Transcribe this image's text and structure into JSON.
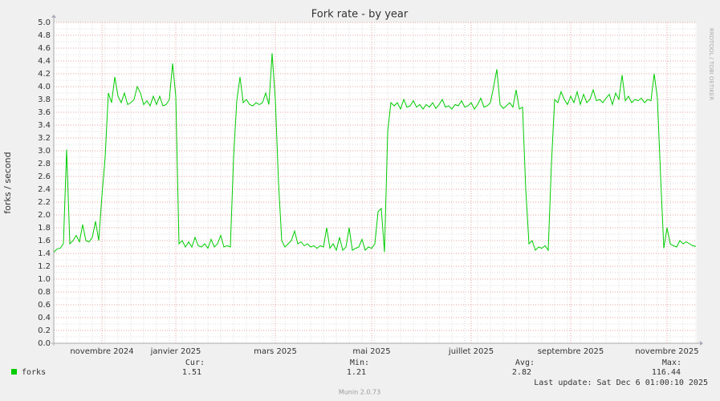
{
  "chart_data": {
    "type": "line",
    "title": "Fork rate - by year",
    "y_label": "forks / second",
    "side_label": "RRDTOOL / TOBI OETIKER",
    "footer": "Munin 2.0.73",
    "last_update": "Last update: Sat Dec  6 01:00:10 2025",
    "categories": [
      null,
      null,
      null,
      null,
      null,
      null,
      null,
      null,
      null,
      null,
      null,
      null,
      null,
      null,
      null,
      "novembre 2024",
      null,
      null,
      null,
      null,
      null,
      null,
      null,
      null,
      null,
      null,
      null,
      null,
      null,
      null,
      null,
      null,
      null,
      null,
      null,
      null,
      null,
      null,
      "janvier 2025",
      null,
      null,
      null,
      null,
      null,
      null,
      null,
      null,
      null,
      null,
      null,
      null,
      null,
      null,
      null,
      null,
      null,
      null,
      null,
      null,
      null,
      null,
      null,
      null,
      null,
      null,
      null,
      null,
      null,
      null,
      "mars 2025",
      null,
      null,
      null,
      null,
      null,
      null,
      null,
      null,
      null,
      null,
      null,
      null,
      null,
      null,
      null,
      null,
      null,
      null,
      null,
      null,
      null,
      null,
      null,
      null,
      null,
      null,
      null,
      null,
      null,
      "mai 2025",
      null,
      null,
      null,
      null,
      null,
      null,
      null,
      null,
      null,
      null,
      null,
      null,
      null,
      null,
      null,
      null,
      null,
      null,
      null,
      null,
      null,
      null,
      null,
      null,
      null,
      null,
      null,
      null,
      null,
      null,
      "juillet 2025",
      null,
      null,
      null,
      null,
      null,
      null,
      null,
      null,
      null,
      null,
      null,
      null,
      null,
      null,
      null,
      null,
      null,
      null,
      null,
      null,
      null,
      null,
      null,
      null,
      null,
      null,
      null,
      null,
      null,
      null,
      "septembre 2025",
      null,
      null,
      null,
      null,
      null,
      null,
      null,
      null,
      null,
      null,
      null,
      null,
      null,
      null,
      null,
      null,
      null,
      null,
      null,
      null,
      null,
      null,
      null,
      null,
      null,
      null,
      null,
      null,
      null,
      "novembre 2025",
      null,
      null,
      null,
      null,
      null,
      null,
      null,
      null,
      null
    ],
    "series": [
      {
        "name": "forks",
        "color": "#00cc00",
        "values": [
          1.42,
          1.47,
          1.48,
          1.55,
          3.02,
          1.55,
          1.6,
          1.68,
          1.58,
          1.85,
          1.6,
          1.58,
          1.65,
          1.9,
          1.6,
          2.3,
          2.9,
          3.9,
          3.75,
          4.15,
          3.85,
          3.75,
          3.9,
          3.72,
          3.75,
          3.8,
          4.0,
          3.9,
          3.72,
          3.78,
          3.7,
          3.85,
          3.72,
          3.85,
          3.7,
          3.72,
          3.8,
          4.36,
          3.85,
          1.55,
          1.6,
          1.5,
          1.58,
          1.5,
          1.65,
          1.52,
          1.5,
          1.55,
          1.48,
          1.62,
          1.5,
          1.55,
          1.68,
          1.5,
          1.52,
          1.5,
          2.9,
          3.78,
          4.15,
          3.75,
          3.8,
          3.72,
          3.7,
          3.75,
          3.72,
          3.75,
          3.9,
          3.72,
          4.52,
          3.8,
          2.5,
          1.6,
          1.5,
          1.55,
          1.6,
          1.75,
          1.55,
          1.58,
          1.52,
          1.55,
          1.5,
          1.52,
          1.48,
          1.52,
          1.5,
          1.8,
          1.48,
          1.55,
          1.45,
          1.65,
          1.45,
          1.5,
          1.8,
          1.45,
          1.48,
          1.5,
          1.62,
          1.45,
          1.5,
          1.48,
          1.55,
          2.05,
          2.1,
          1.42,
          3.3,
          3.75,
          3.7,
          3.75,
          3.65,
          3.8,
          3.68,
          3.7,
          3.78,
          3.68,
          3.72,
          3.65,
          3.72,
          3.68,
          3.75,
          3.66,
          3.72,
          3.8,
          3.68,
          3.7,
          3.65,
          3.72,
          3.7,
          3.78,
          3.68,
          3.7,
          3.75,
          3.65,
          3.72,
          3.82,
          3.68,
          3.7,
          3.75,
          4.0,
          4.27,
          3.72,
          3.66,
          3.7,
          3.75,
          3.68,
          3.95,
          3.65,
          3.68,
          2.4,
          1.55,
          1.6,
          1.45,
          1.5,
          1.48,
          1.52,
          1.45,
          2.8,
          3.8,
          3.75,
          3.92,
          3.8,
          3.72,
          3.85,
          3.75,
          3.92,
          3.72,
          3.88,
          3.75,
          3.8,
          3.95,
          3.78,
          3.8,
          3.75,
          3.82,
          3.88,
          3.72,
          3.9,
          3.8,
          4.18,
          3.78,
          3.85,
          3.75,
          3.8,
          3.78,
          3.82,
          3.75,
          3.8,
          3.78,
          4.2,
          3.82,
          2.6,
          1.48,
          1.8,
          1.55,
          1.52,
          1.5,
          1.6,
          1.55,
          1.58,
          1.55,
          1.52,
          1.51
        ]
      }
    ],
    "stats": [
      {
        "label": "Cur:",
        "value": 1.51
      },
      {
        "label": "Min:",
        "value": 1.21
      },
      {
        "label": "Avg:",
        "value": 2.82
      },
      {
        "label": "Max:",
        "value": 116.44
      }
    ],
    "ylim": [
      0,
      5
    ],
    "yticks": [
      {
        "value": 0,
        "label": "0.0"
      },
      0.2,
      0.4,
      0.6,
      0.8,
      {
        "value": 1,
        "label": "1.0"
      },
      1.2,
      1.4,
      1.6,
      1.8,
      {
        "value": 2,
        "label": "2.0"
      },
      2.2,
      2.4,
      2.6,
      2.8,
      {
        "value": 3,
        "label": "3.0"
      },
      3.2,
      3.4,
      3.6,
      3.8,
      {
        "value": 4,
        "label": "4.0"
      },
      4.2,
      4.4,
      4.6,
      4.8,
      {
        "value": 5,
        "label": "5.0"
      }
    ],
    "grid": true
  }
}
